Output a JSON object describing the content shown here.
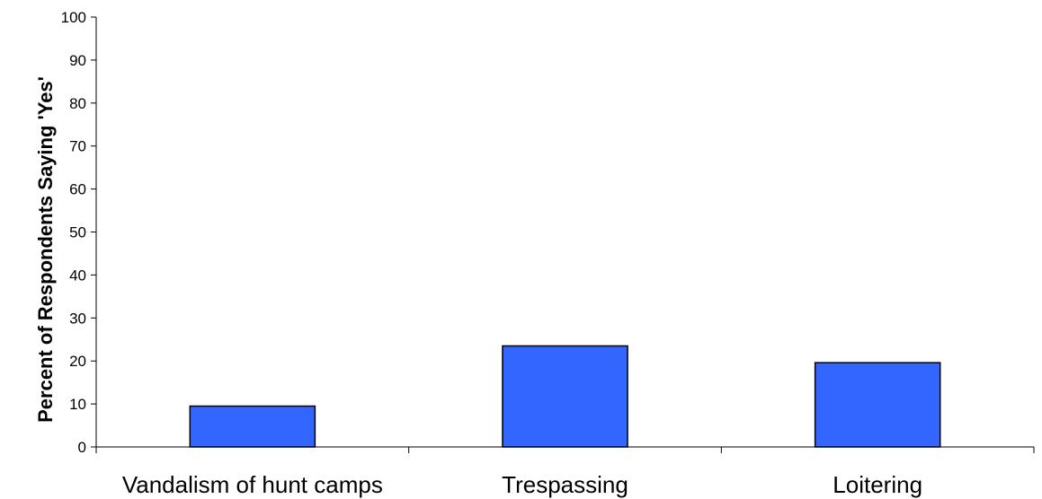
{
  "chart_data": {
    "type": "bar",
    "title": "",
    "xlabel": "",
    "ylabel": "Percent of Respondents Saying 'Yes'",
    "categories": [
      "Vandalism of hunt camps",
      "Trespassing",
      "Loitering"
    ],
    "values": [
      9.5,
      23.5,
      19.6
    ],
    "ylim": [
      0,
      100
    ],
    "yticks": [
      0,
      10,
      20,
      30,
      40,
      50,
      60,
      70,
      80,
      90,
      100
    ],
    "grid": false,
    "legend": "none",
    "bar_color": "#3366FF",
    "bar_edge_color": "#000000"
  }
}
